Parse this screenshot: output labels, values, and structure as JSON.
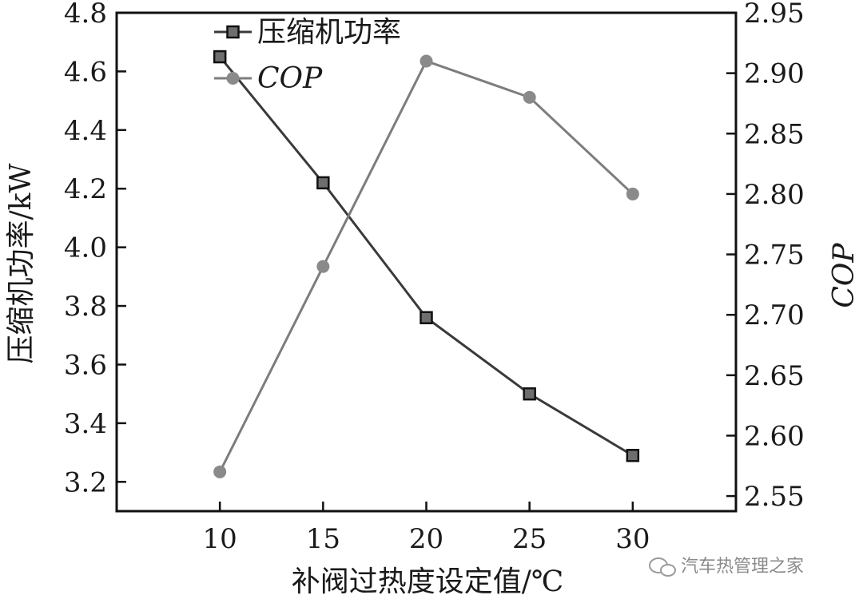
{
  "chart_data": {
    "type": "line",
    "x": [
      10,
      15,
      20,
      25,
      30
    ],
    "xlabel": "补阀过热度设定值/℃",
    "xlim": [
      5,
      35
    ],
    "x_ticks": [
      10,
      15,
      20,
      25,
      30
    ],
    "ylabel_left": "压缩机功率/kW",
    "ylim_left": [
      3.1,
      4.8
    ],
    "y_ticks_left": [
      "3.2",
      "3.4",
      "3.6",
      "3.8",
      "4.0",
      "4.2",
      "4.4",
      "4.6",
      "4.8"
    ],
    "ylabel_right": "COP",
    "ylim_right": [
      2.5375,
      2.95
    ],
    "y_ticks_right": [
      "2.55",
      "2.60",
      "2.65",
      "2.70",
      "2.75",
      "2.80",
      "2.85",
      "2.90",
      "2.95"
    ],
    "legend_position": "top-left",
    "grid": false,
    "series": [
      {
        "name": "压缩机功率",
        "axis": "left",
        "marker": "square",
        "color": "#4a4a4a",
        "values": [
          4.65,
          4.22,
          3.76,
          3.5,
          3.29
        ]
      },
      {
        "name": "COP",
        "axis": "right",
        "marker": "circle",
        "color": "#8a8a8a",
        "values": [
          2.57,
          2.74,
          2.91,
          2.88,
          2.8
        ]
      }
    ]
  },
  "watermark": {
    "icon": "wechat-icon",
    "text": "汽车热管理之家"
  }
}
